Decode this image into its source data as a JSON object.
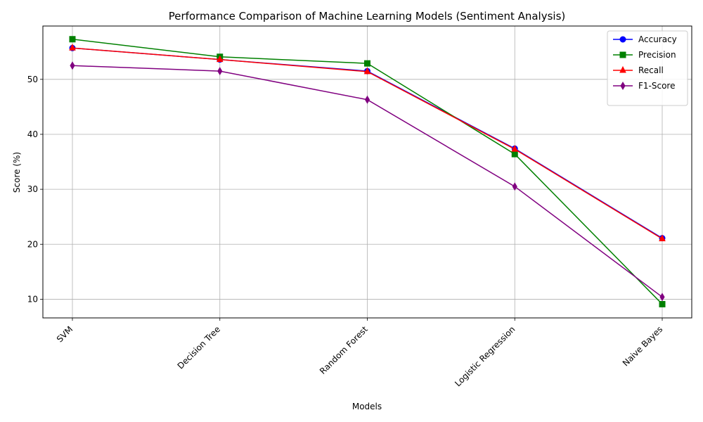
{
  "chart_data": {
    "type": "line",
    "title": "Performance Comparison of Machine Learning Models (Sentiment Analysis)",
    "xlabel": "Models",
    "ylabel": "Score (%)",
    "categories": [
      "SVM",
      "Decision Tree",
      "Random Forest",
      "Logistic Regression",
      "Naive Bayes"
    ],
    "ylim": [
      6.6,
      59.7
    ],
    "yticks": [
      10,
      20,
      30,
      40,
      50
    ],
    "grid": true,
    "legend_position": "top-right",
    "series": [
      {
        "name": "Accuracy",
        "color": "#0000ff",
        "marker": "circle",
        "values": [
          55.7,
          53.6,
          51.5,
          37.4,
          21.1
        ]
      },
      {
        "name": "Precision",
        "color": "#008000",
        "marker": "square",
        "values": [
          57.3,
          54.1,
          52.9,
          36.4,
          9.1
        ]
      },
      {
        "name": "Recall",
        "color": "#ff0000",
        "marker": "triangle",
        "values": [
          55.7,
          53.6,
          51.4,
          37.3,
          21.0
        ]
      },
      {
        "name": "F1-Score",
        "color": "#800080",
        "marker": "diamond",
        "values": [
          52.5,
          51.5,
          46.3,
          30.5,
          10.4
        ]
      }
    ]
  }
}
